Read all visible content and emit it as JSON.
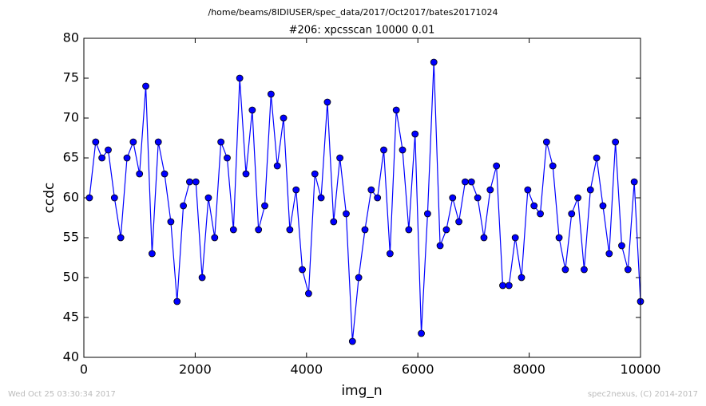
{
  "chart_data": {
    "type": "line",
    "suptitle": "/home/beams/8IDIUSER/spec_data/2017/Oct2017/bates20171024",
    "title": "#206: xpcsscan 10000 0.01",
    "xlabel": "img_n",
    "ylabel": "ccdc",
    "footer_left": "Wed Oct 25 03:30:34 2017",
    "footer_right": "spec2nexus, (C) 2014-2017",
    "x": [
      100,
      212.5,
      325,
      437.5,
      550,
      662.5,
      775,
      887.5,
      1000,
      1112.5,
      1225,
      1337.5,
      1450,
      1562.5,
      1675,
      1787.5,
      1900,
      2012.5,
      2125,
      2237.5,
      2350,
      2462.5,
      2575,
      2687.5,
      2800,
      2912.5,
      3025,
      3137.5,
      3250,
      3362.5,
      3475,
      3587.5,
      3700,
      3812.5,
      3925,
      4037.5,
      4150,
      4262.5,
      4375,
      4487.5,
      4600,
      4712.5,
      4825,
      4937.5,
      5050,
      5162.5,
      5275,
      5387.5,
      5500,
      5612.5,
      5725,
      5837.5,
      5950,
      6062.5,
      6175,
      6287.5,
      6400,
      6512.5,
      6625,
      6737.5,
      6850,
      6962.5,
      7075,
      7187.5,
      7300,
      7412.5,
      7525,
      7637.5,
      7750,
      7862.5,
      7975,
      8087.5,
      8200,
      8312.5,
      8425,
      8537.5,
      8650,
      8762.5,
      8875,
      8987.5,
      9100,
      9212.5,
      9325,
      9437.5,
      9550,
      9662.5,
      9775,
      9887.5,
      10000
    ],
    "series": [
      {
        "color": "#0000ff",
        "values": [
          60,
          67,
          65,
          66,
          60,
          55,
          65,
          67,
          63,
          74,
          53,
          67,
          63,
          57,
          47,
          59,
          62,
          62,
          50,
          60,
          55,
          67,
          65,
          56,
          75,
          63,
          71,
          56,
          59,
          73,
          64,
          70,
          56,
          61,
          51,
          48,
          63,
          60,
          72,
          57,
          65,
          58,
          42,
          50,
          56,
          61,
          60,
          66,
          53,
          71,
          66,
          56,
          68,
          43,
          58,
          77,
          54,
          56,
          60,
          57,
          62,
          62,
          60,
          55,
          61,
          64,
          49,
          49,
          55,
          50,
          61,
          59,
          58,
          67,
          64,
          55,
          51,
          58,
          60,
          51,
          61,
          65,
          59,
          53,
          67,
          54,
          51,
          62,
          47
        ]
      }
    ],
    "xlim": [
      0,
      10000
    ],
    "xticks": [
      0,
      2000,
      4000,
      6000,
      8000,
      10000
    ],
    "ylim": [
      40,
      80
    ],
    "yticks": [
      40,
      45,
      50,
      55,
      60,
      65,
      70,
      75,
      80
    ],
    "grid": false
  }
}
